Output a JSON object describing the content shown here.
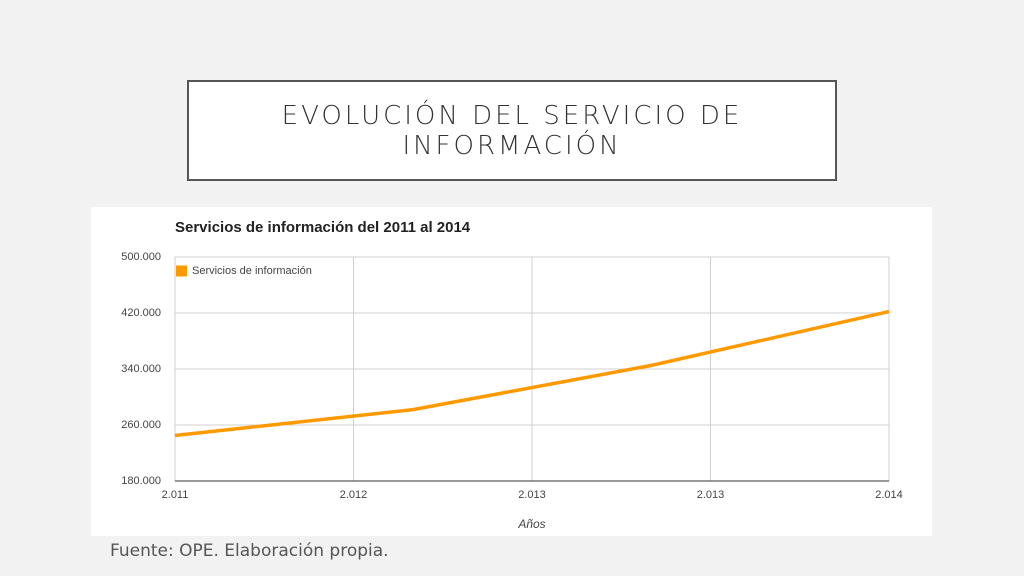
{
  "slide": {
    "title": "EVOLUCIÓN DEL SERVICIO DE INFORMACIÓN",
    "source": "Fuente: OPE. Elaboración propia."
  },
  "chart_data": {
    "type": "line",
    "title": "Servicios de información del 2011 al 2014",
    "x_label": "Años",
    "x": [
      2011,
      2012,
      2013,
      2014
    ],
    "series": [
      {
        "name": "Servicios de información",
        "color": "#ff9900",
        "values": [
          245000,
          282000,
          345000,
          422000
        ]
      }
    ],
    "xlim": [
      2011,
      2014
    ],
    "xticks": [
      {
        "value": 2011,
        "label": "2.011"
      },
      {
        "value": 2011.75,
        "label": "2.012"
      },
      {
        "value": 2012.5,
        "label": "2.013"
      },
      {
        "value": 2013.25,
        "label": "2.013"
      },
      {
        "value": 2014,
        "label": "2.014"
      }
    ],
    "ylim": [
      180000,
      500000
    ],
    "yticks": [
      {
        "value": 180000,
        "label": "180.000"
      },
      {
        "value": 260000,
        "label": "260.000"
      },
      {
        "value": 340000,
        "label": "340.000"
      },
      {
        "value": 420000,
        "label": "420.000"
      },
      {
        "value": 500000,
        "label": "500.000"
      }
    ],
    "grid": true,
    "legend": "top-left"
  }
}
